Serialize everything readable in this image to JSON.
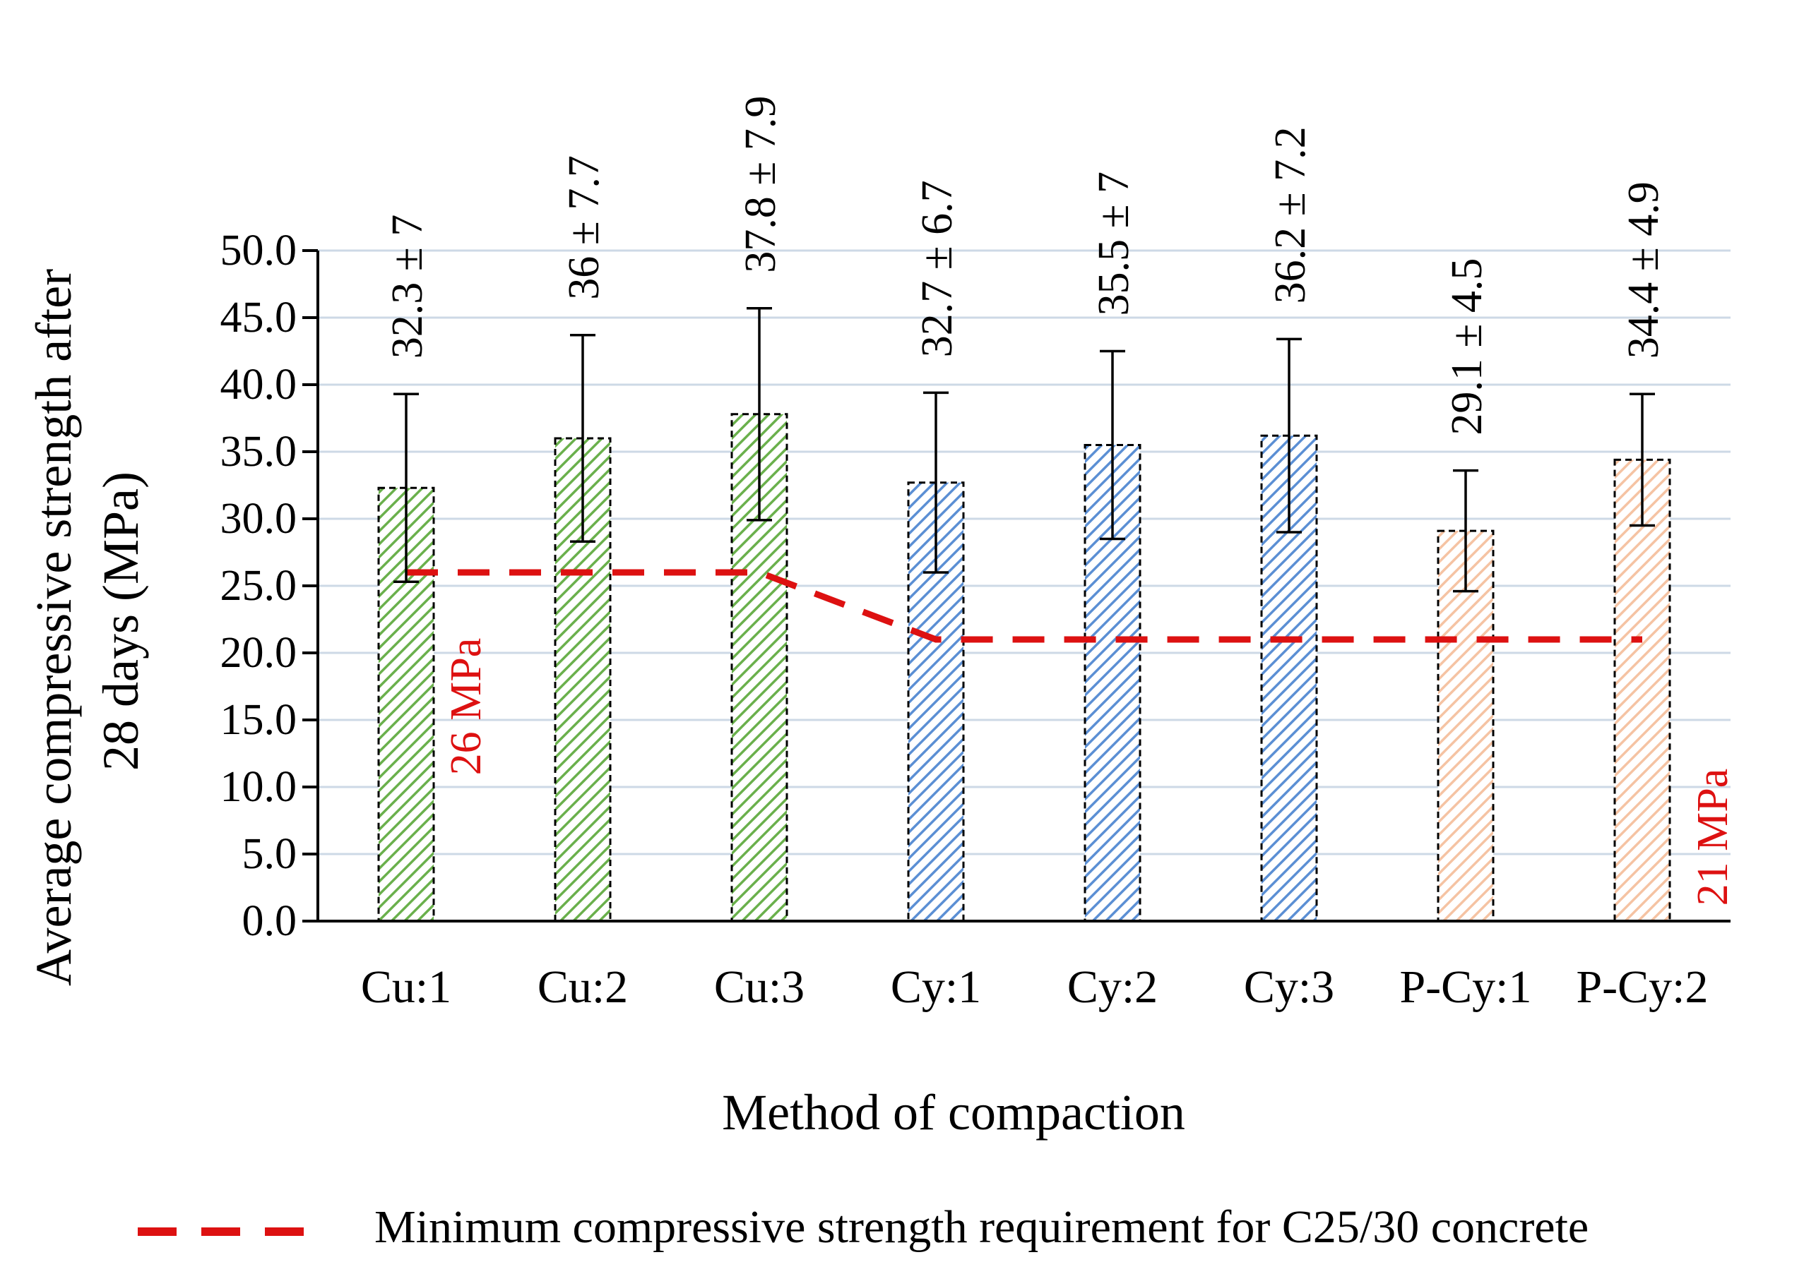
{
  "chart_data": {
    "type": "bar",
    "title": "",
    "xlabel": "Method of compaction",
    "ylabel_lines": [
      "Average compressive strength after",
      "28 days (MPa)"
    ],
    "ylim": [
      0,
      50
    ],
    "ytick_step": 5,
    "ytick_labels": [
      "0.0",
      "5.0",
      "10.0",
      "15.0",
      "20.0",
      "25.0",
      "30.0",
      "35.0",
      "40.0",
      "45.0",
      "50.0"
    ],
    "grid": true,
    "categories": [
      "Cu:1",
      "Cu:2",
      "Cu:3",
      "Cy:1",
      "Cy:2",
      "Cy:3",
      "P-Cy:1",
      "P-Cy:2"
    ],
    "values": [
      32.3,
      36,
      37.8,
      32.7,
      35.5,
      36.2,
      29.1,
      34.4
    ],
    "errors": [
      7,
      7.7,
      7.9,
      6.7,
      7,
      7.2,
      4.5,
      4.9
    ],
    "data_labels": [
      "32.3 ± 7",
      "36 ± 7.7",
      "37.8 ± 7.9",
      "32.7 ± 6.7",
      "35.5 ± 7",
      "36.2 ± 7.2",
      "29.1 ± 4.5",
      "34.4 ± 4.9"
    ],
    "groups": [
      "Cu",
      "Cu",
      "Cu",
      "Cy",
      "Cy",
      "Cy",
      "P-Cy",
      "P-Cy"
    ],
    "group_colors": {
      "Cu": "#6ab04c",
      "Cy": "#5b8fd4",
      "P-Cy": "#f5c3a3"
    },
    "requirement_line": {
      "name": "Minimum  compressive strength requirement for C25/30 concrete",
      "values": [
        26,
        26,
        26,
        21,
        21,
        21,
        21,
        21
      ],
      "color": "#dd1111",
      "annotations": [
        {
          "text": "26 MPa",
          "category_index": 0,
          "value": 26
        },
        {
          "text": "21 MPa",
          "category_index": 7,
          "value": 21
        }
      ]
    },
    "legend": {
      "position": "bottom",
      "entries": [
        "Minimum  compressive strength requirement for C25/30 concrete"
      ]
    }
  }
}
